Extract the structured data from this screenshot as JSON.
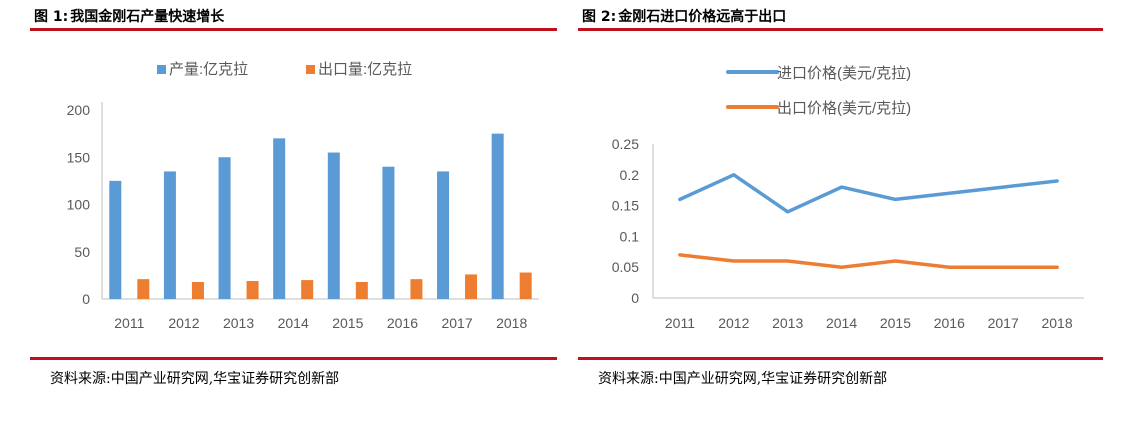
{
  "figures": [
    {
      "label": "图 1:",
      "title": "我国金刚石产量快速增长",
      "source": "资料来源:中国产业研究网,华宝证券研究创新部"
    },
    {
      "label": "图 2:",
      "title": "金刚石进口价格远高于出口",
      "source": "资料来源:中国产业研究网,华宝证券研究创新部"
    }
  ],
  "chart_data": [
    {
      "type": "bar",
      "categories": [
        "2011",
        "2012",
        "2013",
        "2014",
        "2015",
        "2016",
        "2017",
        "2018"
      ],
      "series": [
        {
          "name": "产量:亿克拉",
          "color": "#5b9bd5",
          "values": [
            125,
            135,
            150,
            170,
            155,
            140,
            135,
            175
          ]
        },
        {
          "name": "出口量:亿克拉",
          "color": "#ed7d31",
          "values": [
            21,
            18,
            19,
            20,
            18,
            21,
            26,
            28
          ]
        }
      ],
      "ylim": [
        0,
        200
      ],
      "yticks": [
        "0",
        "50",
        "100",
        "150",
        "200"
      ],
      "grid": false,
      "legend": "top"
    },
    {
      "type": "line",
      "categories": [
        "2011",
        "2012",
        "2013",
        "2014",
        "2015",
        "2016",
        "2017",
        "2018"
      ],
      "series": [
        {
          "name": "进口价格(美元/克拉)",
          "color": "#5b9bd5",
          "values": [
            0.16,
            0.2,
            0.14,
            0.18,
            0.16,
            0.17,
            0.18,
            0.19
          ]
        },
        {
          "name": "出口价格(美元/克拉)",
          "color": "#ed7d31",
          "values": [
            0.07,
            0.06,
            0.06,
            0.05,
            0.06,
            0.05,
            0.05,
            0.05
          ]
        }
      ],
      "ylim": [
        0,
        0.25
      ],
      "yticks": [
        "0",
        "0.05",
        "0.1",
        "0.15",
        "0.2",
        "0.25"
      ],
      "grid": false,
      "legend": "top"
    }
  ]
}
